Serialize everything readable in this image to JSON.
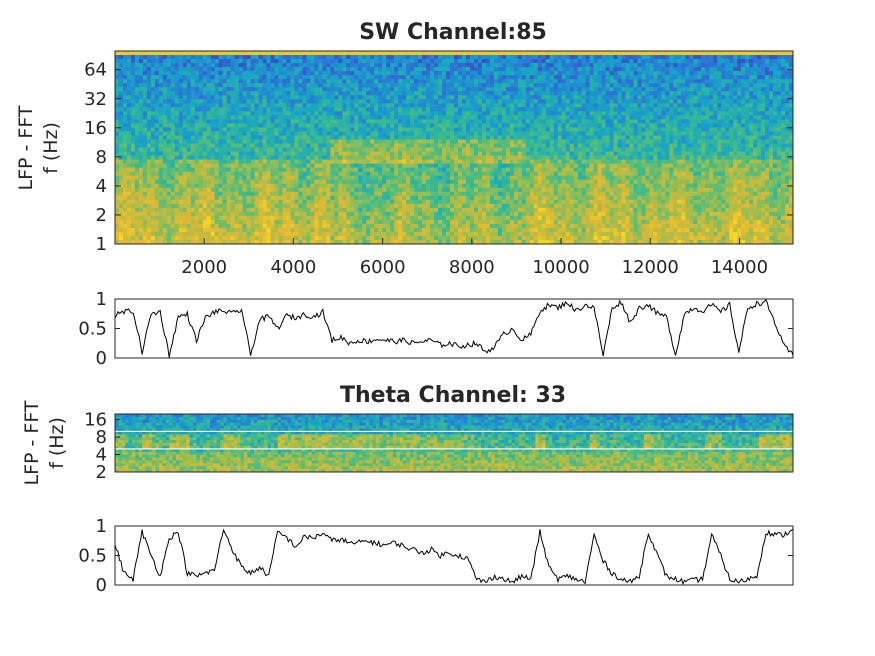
{
  "chart_data": [
    {
      "type": "heatmap",
      "title": "SW Channel:85",
      "ylabel_line1": "LFP - FFT",
      "ylabel_line2": "f (Hz)",
      "y_scale": "log",
      "ylim": [
        1,
        100
      ],
      "xlim": [
        0,
        15200
      ],
      "x_ticks": [
        2000,
        4000,
        6000,
        8000,
        10000,
        12000,
        14000
      ],
      "x_tick_labels": [
        "2000",
        "4000",
        "6000",
        "8000",
        "10000",
        "12000",
        "14000"
      ],
      "y_ticks": [
        1,
        2,
        4,
        8,
        16,
        32,
        64
      ],
      "y_tick_labels": [
        "1",
        "2",
        "4",
        "8",
        "16",
        "32",
        "64"
      ],
      "colormap": [
        "#3e26a8",
        "#2f6fd8",
        "#16a4c9",
        "#3fbc8a",
        "#a6bd4a",
        "#e5b935",
        "#f9e21e"
      ],
      "description_values": {
        "low_freq_power_segments": [
          {
            "x_start": 0,
            "x_end": 4800,
            "level": "high"
          },
          {
            "x_start": 4800,
            "x_end": 9200,
            "level": "low"
          },
          {
            "x_start": 9200,
            "x_end": 15200,
            "level": "high"
          }
        ],
        "theta_band_hz": [
          6,
          9
        ]
      }
    },
    {
      "type": "line",
      "ylim": [
        0,
        1
      ],
      "xlim": [
        0,
        15200
      ],
      "y_ticks": [
        0,
        0.5,
        1
      ],
      "y_tick_labels": [
        "0",
        "0.5",
        "1"
      ],
      "series": [
        {
          "values": [
            0.72,
            0.78,
            0.8,
            0.1,
            0.75,
            0.78,
            0.05,
            0.7,
            0.74,
            0.3,
            0.68,
            0.78,
            0.8,
            0.75,
            0.82,
            0.05,
            0.65,
            0.7,
            0.5,
            0.72,
            0.68,
            0.74,
            0.7,
            0.78,
            0.3,
            0.35,
            0.25,
            0.3,
            0.28,
            0.32,
            0.3,
            0.28,
            0.3,
            0.25,
            0.28,
            0.3,
            0.22,
            0.25,
            0.2,
            0.22,
            0.25,
            0.1,
            0.2,
            0.4,
            0.5,
            0.3,
            0.4,
            0.8,
            0.9,
            0.85,
            0.95,
            0.8,
            0.9,
            0.85,
            0.05,
            0.85,
            0.95,
            0.6,
            0.85,
            0.9,
            0.75,
            0.7,
            0.05,
            0.75,
            0.85,
            0.8,
            0.9,
            0.78,
            0.9,
            0.1,
            0.85,
            0.92,
            0.95,
            0.6,
            0.2,
            0.05
          ],
          "x_end": 15200
        }
      ]
    },
    {
      "type": "heatmap",
      "title": "Theta Channel: 33",
      "ylabel_line1": "LFP - FFT",
      "ylabel_line2": "f (Hz)",
      "y_scale": "log",
      "ylim": [
        2,
        20
      ],
      "xlim": [
        0,
        15200
      ],
      "y_ticks": [
        2,
        4,
        8,
        16
      ],
      "y_tick_labels": [
        "2",
        "4",
        "8",
        "16"
      ],
      "band_lines_hz": [
        5,
        10
      ],
      "colormap": [
        "#3e26a8",
        "#2f6fd8",
        "#16a4c9",
        "#3fbc8a",
        "#a6bd4a",
        "#e5b935",
        "#f9e21e"
      ]
    },
    {
      "type": "line",
      "ylim": [
        0,
        1
      ],
      "xlim": [
        0,
        15200
      ],
      "y_ticks": [
        0,
        0.5,
        1
      ],
      "y_tick_labels": [
        "0",
        "0.5",
        "1"
      ],
      "series": [
        {
          "values": [
            0.7,
            0.2,
            0.1,
            0.9,
            0.5,
            0.15,
            0.8,
            0.9,
            0.2,
            0.15,
            0.2,
            0.25,
            0.95,
            0.6,
            0.3,
            0.2,
            0.3,
            0.15,
            0.9,
            0.8,
            0.65,
            0.82,
            0.8,
            0.88,
            0.75,
            0.78,
            0.7,
            0.72,
            0.75,
            0.7,
            0.68,
            0.72,
            0.65,
            0.6,
            0.55,
            0.6,
            0.5,
            0.55,
            0.5,
            0.45,
            0.1,
            0.05,
            0.15,
            0.1,
            0.05,
            0.15,
            0.1,
            0.9,
            0.3,
            0.1,
            0.15,
            0.1,
            0.05,
            0.85,
            0.4,
            0.2,
            0.1,
            0.05,
            0.15,
            0.9,
            0.5,
            0.15,
            0.1,
            0.05,
            0.08,
            0.1,
            0.85,
            0.5,
            0.1,
            0.05,
            0.1,
            0.15,
            0.9,
            0.85,
            0.85,
            0.95
          ],
          "x_end": 15200
        }
      ]
    }
  ]
}
